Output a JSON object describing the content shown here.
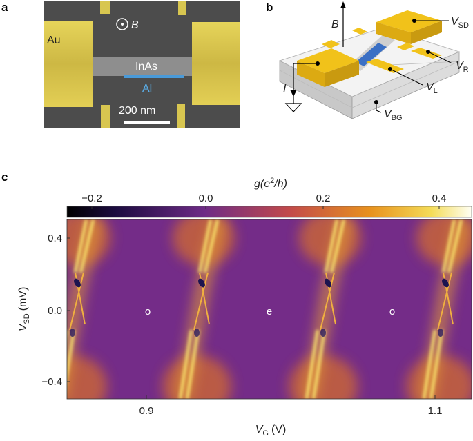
{
  "panels": {
    "a": {
      "label": "a",
      "au": "Au",
      "field": "B",
      "inas": "InAs",
      "al": "Al",
      "scale_bar": "200 nm"
    },
    "b": {
      "label": "b",
      "field": "B",
      "vsd": {
        "symbol": "V",
        "subscript": "SD"
      },
      "vr": {
        "symbol": "V",
        "subscript": "R"
      },
      "vl": {
        "symbol": "V",
        "subscript": "L"
      },
      "current": "I",
      "vbg": {
        "symbol": "V",
        "subscript": "BG"
      }
    },
    "c": {
      "label": "c",
      "colorbar": {
        "label": {
          "prefix": "g(e",
          "superscript": "2",
          "suffix": "/h)"
        },
        "ticks": [
          "−0.2",
          "0.0",
          "0.2",
          "0.4"
        ]
      },
      "y_axis": {
        "label": {
          "symbol": "V",
          "subscript": "SD",
          "unit": "(mV)"
        },
        "ticks": [
          "0.4",
          "0.0",
          "−0.4"
        ]
      },
      "x_axis": {
        "label": {
          "symbol": "V",
          "subscript": "G",
          "unit": "(V)"
        },
        "ticks": [
          "0.9",
          "1.1"
        ]
      },
      "annotations": [
        "o",
        "e",
        "o"
      ]
    }
  }
}
